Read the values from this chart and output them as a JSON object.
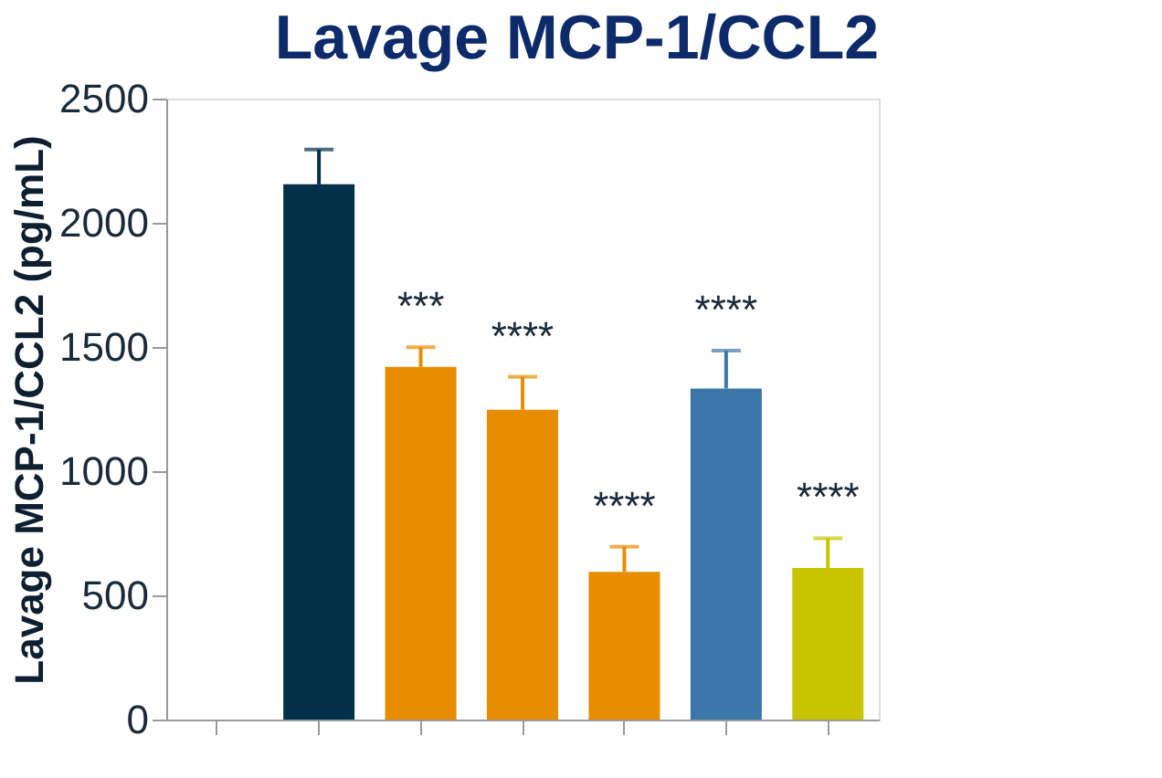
{
  "chart_data": {
    "type": "bar",
    "title": "Lavage MCP-1/CCL2",
    "ylabel": "Lavage MCP-1/CCL2 (pg/mL)",
    "categories": [
      null,
      null,
      null,
      null,
      null,
      null,
      null
    ],
    "values": [
      null,
      2155,
      1420,
      1247,
      595,
      1333,
      610
    ],
    "colors": [
      "#033049",
      "#033049",
      "#e88c00",
      "#e88c00",
      "#e88c00",
      "#3b77a8",
      "#c8c400"
    ],
    "errors": [
      null,
      [
        2155,
        2295
      ],
      [
        1420,
        1499
      ],
      [
        1247,
        1380
      ],
      [
        595,
        696
      ],
      [
        1333,
        1485
      ],
      [
        610,
        730
      ]
    ],
    "annotations": [
      {
        "text": "***",
        "y": 1499
      },
      {
        "text": "****",
        "y": 1380
      },
      {
        "text": "****",
        "y": 696
      },
      {
        "text": "****",
        "y": 1485
      },
      {
        "text": "****",
        "y": 730
      }
    ],
    "ylim": [
      0,
      2500
    ],
    "yticks": [
      0,
      500,
      1000,
      1500,
      2000,
      2500
    ],
    "tick_labels": "y",
    "grid": false
  }
}
